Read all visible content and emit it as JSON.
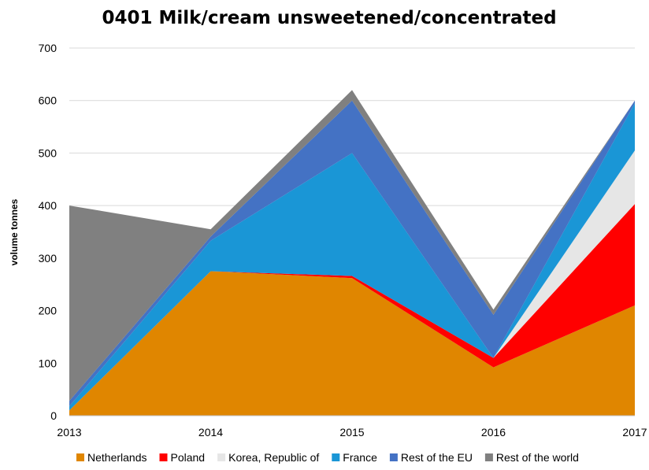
{
  "chart_data": {
    "type": "area",
    "stacked": true,
    "title": "0401 Milk/cream unsweetened/concentrated",
    "xlabel": "",
    "ylabel": "volume tonnes",
    "x": [
      "2013",
      "2014",
      "2015",
      "2016",
      "2017"
    ],
    "ylim": [
      0,
      700
    ],
    "yticks": [
      "0",
      "100",
      "200",
      "300",
      "400",
      "500",
      "600",
      "700"
    ],
    "grid": true,
    "legend_position": "bottom",
    "series": [
      {
        "name": "Netherlands",
        "color": "#E08600",
        "values": [
          10,
          275,
          262,
          92,
          210
        ]
      },
      {
        "name": "Poland",
        "color": "#FF0000",
        "values": [
          0,
          0,
          4,
          18,
          193
        ]
      },
      {
        "name": "Korea, Republic of",
        "color": "#E6E6E6",
        "values": [
          0,
          0,
          0,
          0,
          102
        ]
      },
      {
        "name": "France",
        "color": "#1A96D6",
        "values": [
          8,
          58,
          234,
          0,
          90
        ]
      },
      {
        "name": "Rest of the EU",
        "color": "#4472C4",
        "values": [
          10,
          8,
          100,
          82,
          5
        ]
      },
      {
        "name": "Rest of the world",
        "color": "#808080",
        "values": [
          372,
          14,
          20,
          10,
          0
        ]
      }
    ]
  }
}
